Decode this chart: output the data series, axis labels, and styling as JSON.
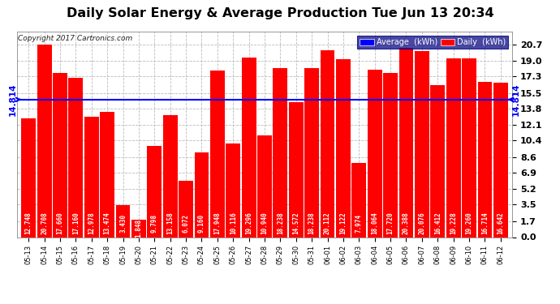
{
  "title": "Daily Solar Energy & Average Production Tue Jun 13 20:34",
  "copyright": "Copyright 2017 Cartronics.com",
  "average_value": 14.814,
  "average_label": "14.814",
  "categories": [
    "05-13",
    "05-14",
    "05-15",
    "05-16",
    "05-17",
    "05-18",
    "05-19",
    "05-20",
    "05-21",
    "05-22",
    "05-23",
    "05-24",
    "05-25",
    "05-26",
    "05-27",
    "05-28",
    "05-29",
    "05-30",
    "05-31",
    "06-01",
    "06-02",
    "06-03",
    "06-04",
    "06-05",
    "06-06",
    "06-07",
    "06-08",
    "06-09",
    "06-10",
    "06-11",
    "06-12"
  ],
  "values": [
    12.748,
    20.708,
    17.66,
    17.16,
    12.978,
    13.474,
    3.43,
    1.848,
    9.798,
    13.158,
    6.072,
    9.16,
    17.948,
    10.116,
    19.296,
    10.94,
    18.238,
    14.572,
    18.238,
    20.112,
    19.122,
    7.974,
    18.064,
    17.72,
    20.388,
    20.076,
    16.412,
    19.228,
    19.26,
    16.714,
    16.642
  ],
  "bar_color": "#FF0000",
  "average_line_color": "#0000FF",
  "ylim_max": 22.1,
  "yticks": [
    0.0,
    1.7,
    3.5,
    5.2,
    6.9,
    8.6,
    10.4,
    12.1,
    13.8,
    15.5,
    17.3,
    19.0,
    20.7
  ],
  "background_color": "#FFFFFF",
  "grid_color": "#BBBBBB",
  "title_fontsize": 11.5,
  "bar_value_fontsize": 5.5,
  "bar_value_color": "#FFFFFF",
  "copyright_fontsize": 6.5,
  "ytick_fontsize": 8,
  "xtick_fontsize": 6.0,
  "avg_label_fontsize": 7.5,
  "legend_avg_color": "#0000FF",
  "legend_daily_color": "#FF0000",
  "legend_text_color": "#FFFFFF",
  "legend_fontsize": 7.0
}
